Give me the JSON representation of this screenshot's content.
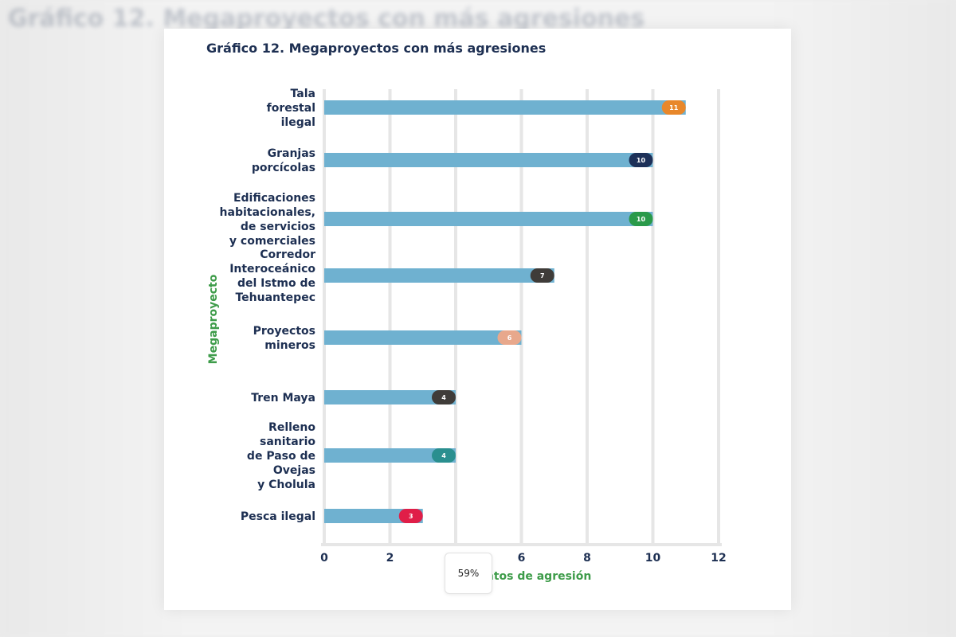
{
  "page": {
    "zoom_label": "59%"
  },
  "chart_data": {
    "type": "bar",
    "orientation": "horizontal",
    "title": "Gráfico 12. Megaproyectos con más agresiones",
    "xlabel": "Eventos de agresión",
    "ylabel": "Megaproyecto",
    "xlim": [
      0,
      12
    ],
    "xticks": [
      0,
      2,
      4,
      6,
      8,
      10,
      12
    ],
    "grid": true,
    "bar_color": "#6fb1d0",
    "categories": [
      [
        "Tala",
        "forestal",
        "ilegal"
      ],
      [
        "Granjas",
        "porcícolas"
      ],
      [
        "Edificaciones",
        "habitacionales,",
        "de servicios",
        "y comerciales"
      ],
      [
        "Corredor",
        "Interoceánico",
        "del Istmo de",
        "Tehuantepec"
      ],
      [
        "Proyectos",
        "mineros"
      ],
      [
        "Tren Maya"
      ],
      [
        "Relleno",
        "sanitario",
        "de Paso de",
        "Ovejas",
        "y Cholula"
      ],
      [
        "Pesca ilegal"
      ]
    ],
    "values": [
      11,
      10,
      10,
      7,
      6,
      4,
      4,
      3
    ],
    "badge_colors": [
      "#e8872a",
      "#1d3058",
      "#2a9a4a",
      "#3f3c39",
      "#e8a88c",
      "#3f3c39",
      "#2a8f8f",
      "#e01e48"
    ]
  }
}
